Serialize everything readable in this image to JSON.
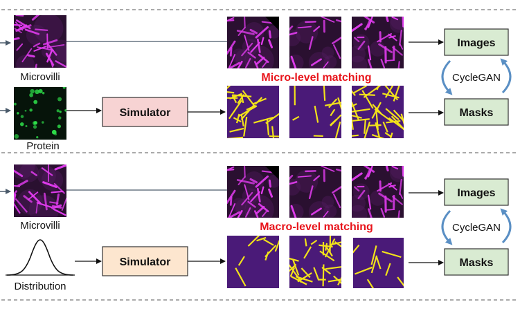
{
  "sections": [
    {
      "input_top_label": "Microvilli",
      "input_bottom_label": "Protein",
      "simulator_label": "Simulator",
      "matching_label": "Micro-level matching",
      "images_label": "Images",
      "masks_label": "Masks",
      "cyclegan_label": "CycleGAN"
    },
    {
      "input_top_label": "Microvilli",
      "input_bottom_label": "Distribution",
      "simulator_label": "Simulator",
      "matching_label": "Macro-level matching",
      "images_label": "Images",
      "masks_label": "Masks",
      "cyclegan_label": "CycleGAN"
    }
  ],
  "colors": {
    "microvilli_bg": "#2a1030",
    "microvilli_fiber": "#e23cf0",
    "protein_bg": "#06140a",
    "protein_dot": "#2ee04a",
    "mask_bg": "#4a1a78",
    "mask_line": "#f2e21a",
    "simulator_top_fill": "#f7d3d3",
    "simulator_bottom_fill": "#fde6cf",
    "output_box_fill": "#d9ebd2",
    "accent_red": "#e8141b",
    "cyclegan_arrow": "#5a8fc4"
  }
}
